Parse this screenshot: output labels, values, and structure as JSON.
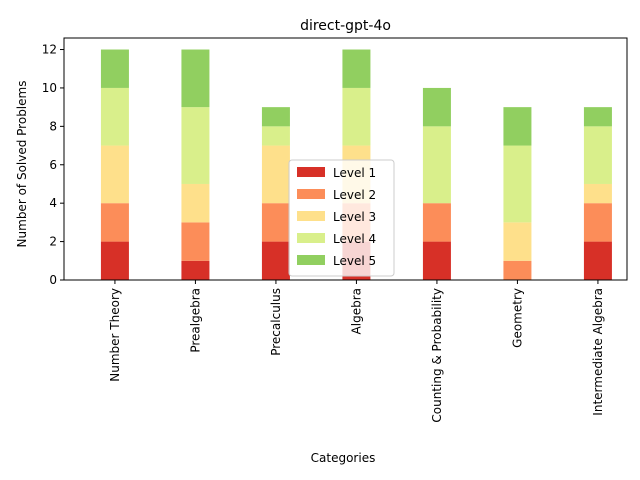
{
  "chart_data": {
    "type": "bar",
    "stacked": true,
    "title": "direct-gpt-4o",
    "xlabel": "Categories",
    "ylabel": "Number of Solved Problems",
    "ylim": [
      0,
      12.6
    ],
    "yticks": [
      0,
      2,
      4,
      6,
      8,
      10,
      12
    ],
    "grid": false,
    "legend_position": "center-bottom",
    "categories": [
      "Number Theory",
      "Prealgebra",
      "Precalculus",
      "Algebra",
      "Counting & Probability",
      "Geometry",
      "Intermediate Algebra"
    ],
    "series": [
      {
        "name": "Level 1",
        "color": "#d73027",
        "values": [
          2,
          1,
          2,
          2,
          2,
          0,
          2
        ]
      },
      {
        "name": "Level 2",
        "color": "#fc8d59",
        "values": [
          2,
          2,
          2,
          2,
          2,
          1,
          2
        ]
      },
      {
        "name": "Level 3",
        "color": "#fee08b",
        "values": [
          3,
          2,
          3,
          3,
          0,
          2,
          1
        ]
      },
      {
        "name": "Level 4",
        "color": "#d9ef8b",
        "values": [
          3,
          4,
          1,
          3,
          4,
          4,
          3
        ]
      },
      {
        "name": "Level 5",
        "color": "#91cf60",
        "values": [
          2,
          3,
          1,
          2,
          2,
          2,
          1
        ]
      }
    ]
  }
}
